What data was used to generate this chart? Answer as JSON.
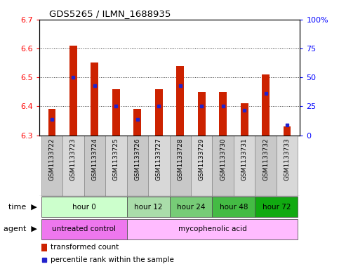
{
  "title": "GDS5265 / ILMN_1688935",
  "samples": [
    "GSM1133722",
    "GSM1133723",
    "GSM1133724",
    "GSM1133725",
    "GSM1133726",
    "GSM1133727",
    "GSM1133728",
    "GSM1133729",
    "GSM1133730",
    "GSM1133731",
    "GSM1133732",
    "GSM1133733"
  ],
  "bar_bottoms": [
    6.3,
    6.3,
    6.3,
    6.3,
    6.3,
    6.3,
    6.3,
    6.3,
    6.3,
    6.3,
    6.3,
    6.3
  ],
  "bar_tops": [
    6.39,
    6.61,
    6.55,
    6.46,
    6.39,
    6.46,
    6.54,
    6.45,
    6.45,
    6.41,
    6.51,
    6.33
  ],
  "blue_positions": [
    6.355,
    6.5,
    6.47,
    6.4,
    6.355,
    6.4,
    6.47,
    6.4,
    6.4,
    6.385,
    6.445,
    6.335
  ],
  "ylim_left": [
    6.3,
    6.7
  ],
  "ylim_right": [
    0,
    100
  ],
  "yticks_left": [
    6.3,
    6.4,
    6.5,
    6.6,
    6.7
  ],
  "yticks_right": [
    0,
    25,
    50,
    75,
    100
  ],
  "ytick_labels_right": [
    "0",
    "25",
    "50",
    "75",
    "100%"
  ],
  "bar_color": "#cc2200",
  "blue_color": "#2222cc",
  "time_groups": [
    {
      "label": "hour 0",
      "start": 0,
      "end": 4,
      "color": "#ccffcc"
    },
    {
      "label": "hour 12",
      "start": 4,
      "end": 6,
      "color": "#aaddaa"
    },
    {
      "label": "hour 24",
      "start": 6,
      "end": 8,
      "color": "#77cc77"
    },
    {
      "label": "hour 48",
      "start": 8,
      "end": 10,
      "color": "#44bb44"
    },
    {
      "label": "hour 72",
      "start": 10,
      "end": 12,
      "color": "#11aa11"
    }
  ],
  "agent_groups": [
    {
      "label": "untreated control",
      "start": 0,
      "end": 4,
      "color": "#ee77ee"
    },
    {
      "label": "mycophenolic acid",
      "start": 4,
      "end": 12,
      "color": "#ffbbff"
    }
  ],
  "legend_items": [
    {
      "color": "#cc2200",
      "label": "transformed count"
    },
    {
      "color": "#2222cc",
      "label": "percentile rank within the sample"
    }
  ],
  "bg_color": "#ffffff",
  "bar_width": 0.35
}
